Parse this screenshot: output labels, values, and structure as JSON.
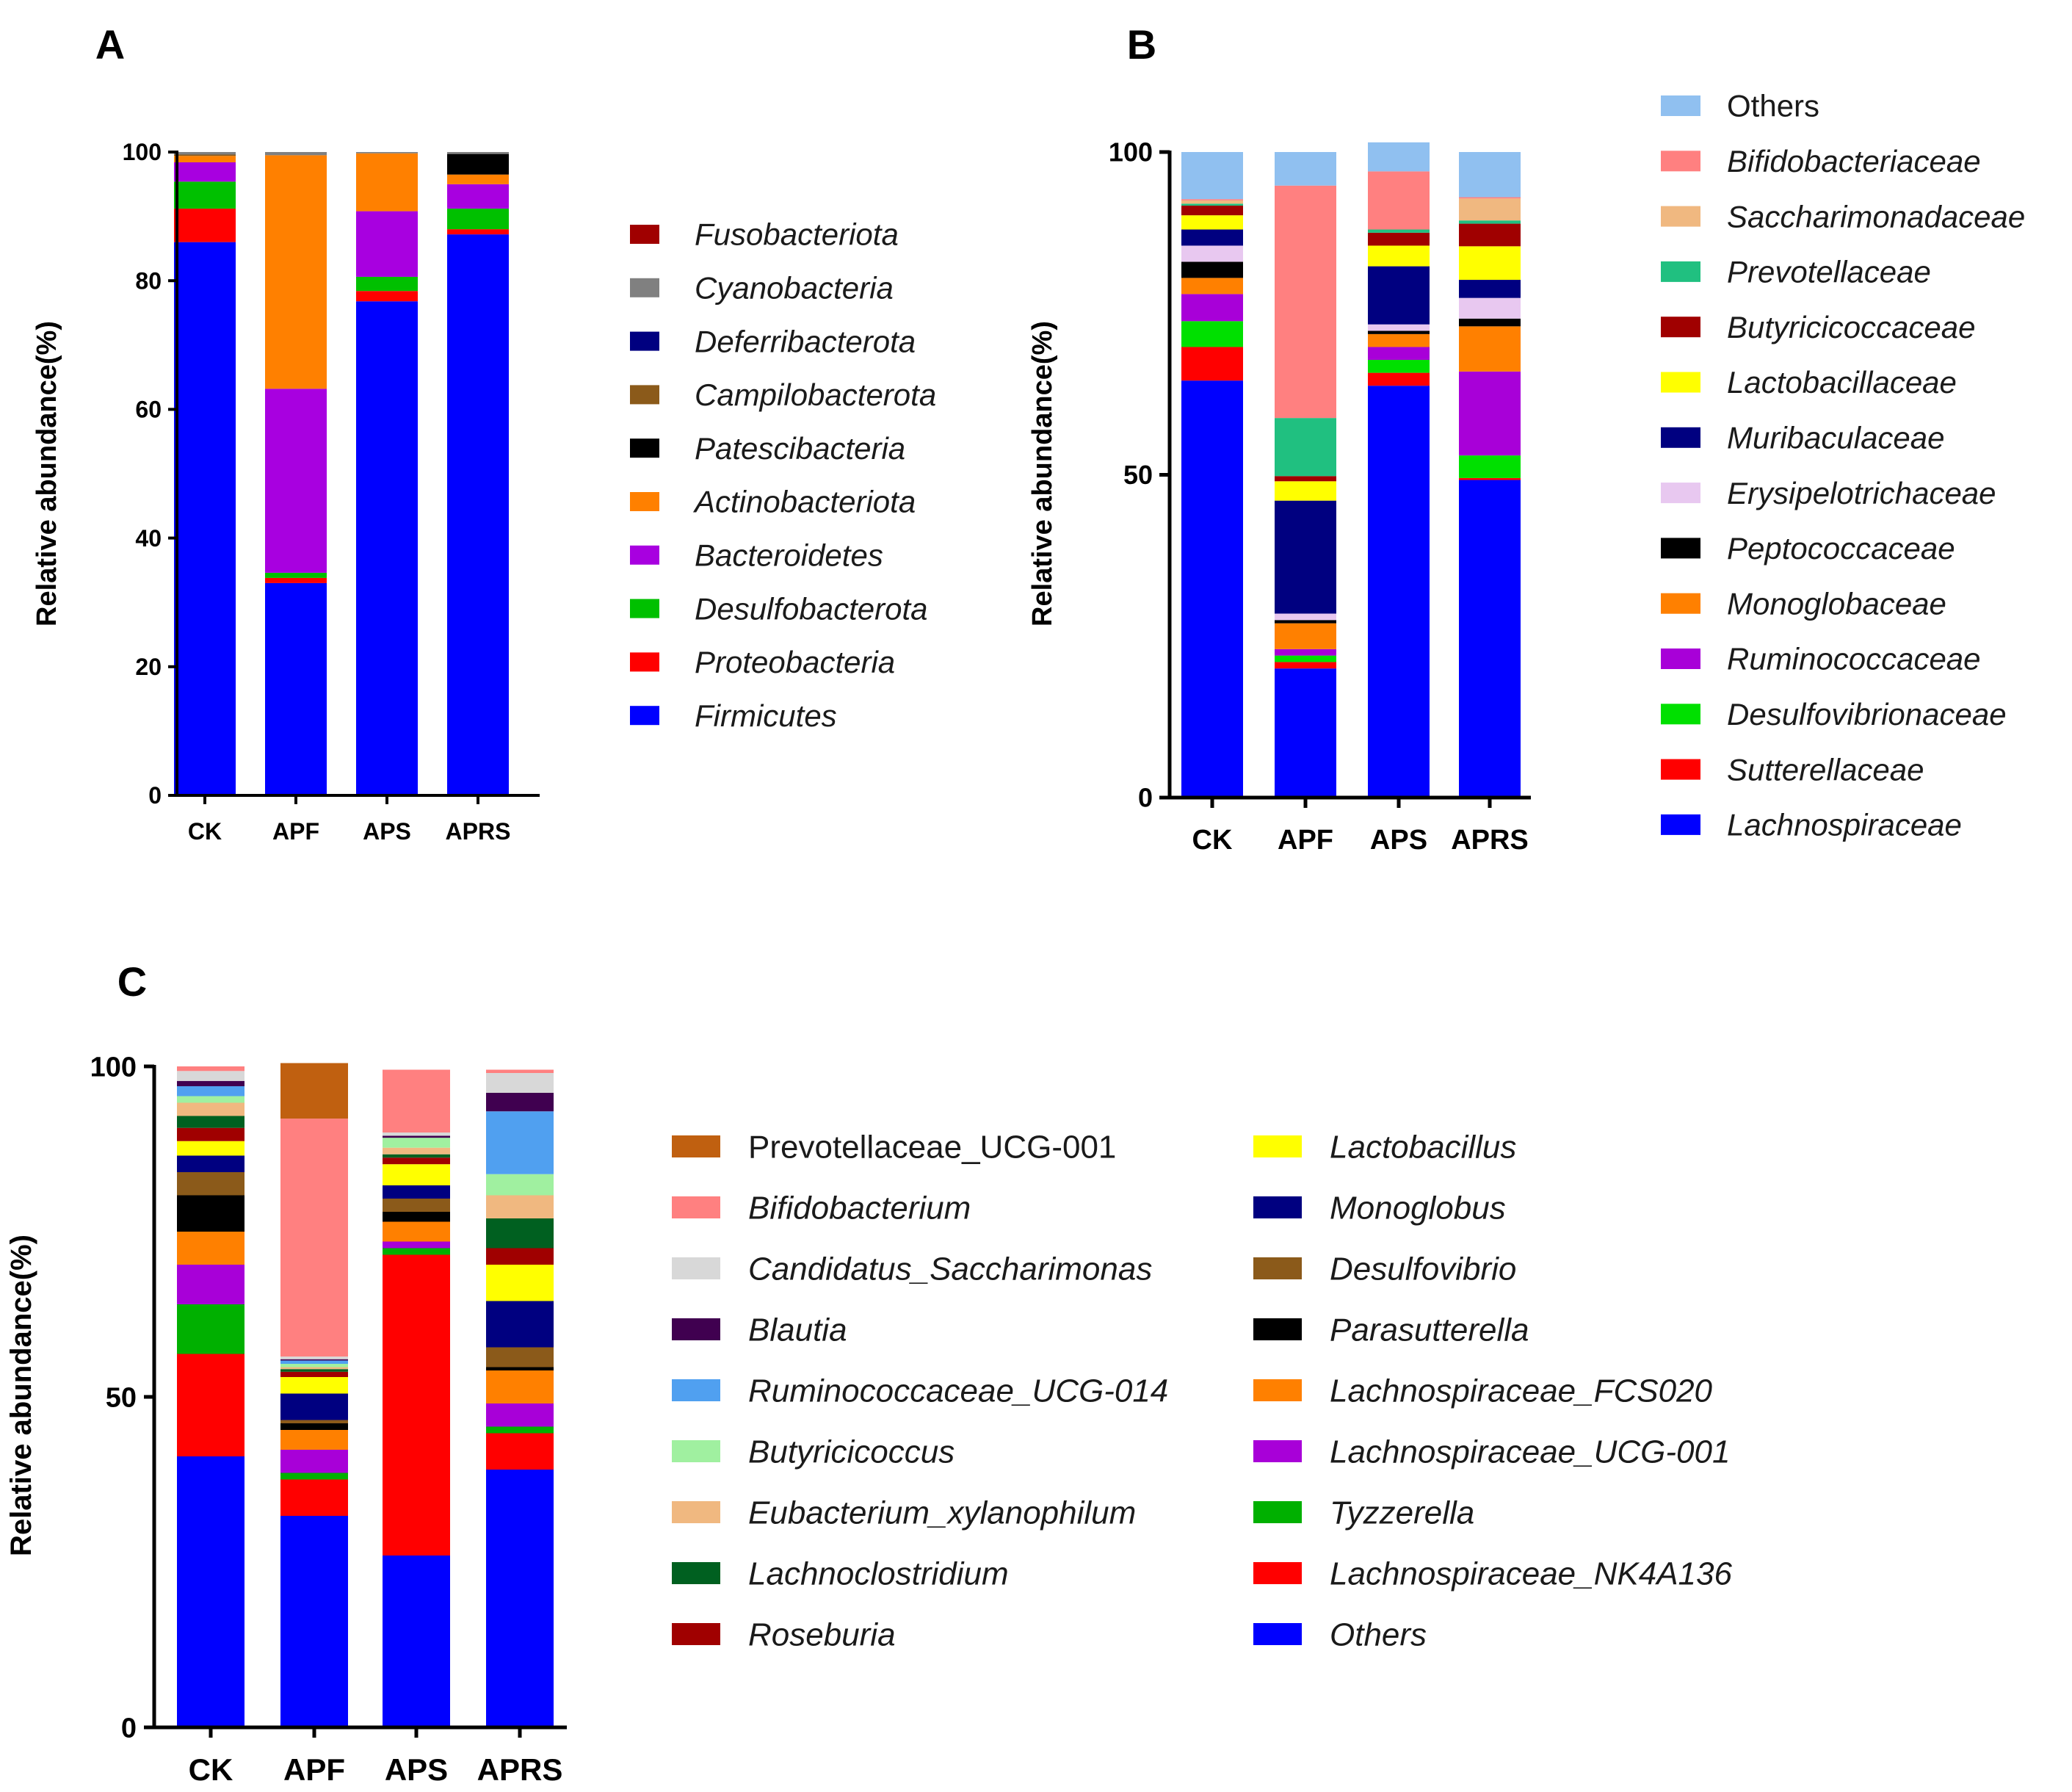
{
  "chart_data": [
    {
      "id": "A",
      "type": "bar",
      "stacked": true,
      "panel_label": "A",
      "title": "",
      "xlabel": "",
      "ylabel": "Relative abundance(%)",
      "ylim": [
        0,
        100
      ],
      "yticks": [
        0,
        20,
        40,
        60,
        80,
        100
      ],
      "categories": [
        "CK",
        "APF",
        "APS",
        "APRS"
      ],
      "legend_italic": [
        true,
        true,
        true,
        true,
        true,
        true,
        true,
        true,
        true,
        true
      ],
      "series": [
        {
          "name": "Firmicutes",
          "color": "#0000FF",
          "values": [
            86,
            33,
            76.8,
            87.2
          ]
        },
        {
          "name": "Proteobacteria",
          "color": "#FF0000",
          "values": [
            5.2,
            0.8,
            1.6,
            0.8
          ]
        },
        {
          "name": "Desulfobacterota",
          "color": "#00C000",
          "values": [
            4.2,
            0.8,
            2.2,
            3.2
          ]
        },
        {
          "name": "Bacteroidetes",
          "color": "#A800E0",
          "values": [
            3,
            28.6,
            10.2,
            3.8
          ]
        },
        {
          "name": "Actinobacteriota",
          "color": "#FF8000",
          "values": [
            1,
            36.3,
            9,
            1.5
          ]
        },
        {
          "name": "Patescibacteria",
          "color": "#000000",
          "values": [
            0,
            0,
            0,
            3.2
          ]
        },
        {
          "name": "Campilobacterota",
          "color": "#8B5A1A",
          "values": [
            0.2,
            0,
            0,
            0
          ]
        },
        {
          "name": "Deferribacterota",
          "color": "#000080",
          "values": [
            0,
            0,
            0,
            0
          ]
        },
        {
          "name": "Cyanobacteria",
          "color": "#808080",
          "values": [
            0.4,
            0.5,
            0.2,
            0.3
          ]
        },
        {
          "name": "Fusobacteriota",
          "color": "#A00000",
          "values": [
            0,
            0,
            0,
            0
          ]
        }
      ]
    },
    {
      "id": "B",
      "type": "bar",
      "stacked": true,
      "panel_label": "B",
      "title": "",
      "xlabel": "",
      "ylabel": "Relative abundance(%)",
      "ylim": [
        0,
        100
      ],
      "yticks": [
        0,
        50,
        100
      ],
      "categories": [
        "CK",
        "APF",
        "APS",
        "APRS"
      ],
      "legend_italic": [
        true,
        true,
        true,
        true,
        true,
        true,
        true,
        true,
        true,
        true,
        true,
        true,
        true,
        false
      ],
      "series": [
        {
          "name": "Lachnospiraceae",
          "color": "#0000FF",
          "values": [
            64.6,
            20,
            63.8,
            49.2
          ]
        },
        {
          "name": "Sutterellaceae",
          "color": "#FF0000",
          "values": [
            5.2,
            1,
            2,
            0.3
          ]
        },
        {
          "name": "Desulfovibrionaceae",
          "color": "#00E000",
          "values": [
            4,
            1,
            2,
            3.5
          ]
        },
        {
          "name": "Ruminococcaceae",
          "color": "#A800D8",
          "values": [
            4.2,
            1,
            2,
            13
          ]
        },
        {
          "name": "Monoglobaceae",
          "color": "#FF8000",
          "values": [
            2.5,
            4,
            2,
            7
          ]
        },
        {
          "name": "Peptococcaceae",
          "color": "#000000",
          "values": [
            2.5,
            0.5,
            0.5,
            1.2
          ]
        },
        {
          "name": "Erysipelotrichaceae",
          "color": "#E8C8F0",
          "values": [
            2.5,
            1,
            1,
            3.2
          ]
        },
        {
          "name": "Muribaculaceae",
          "color": "#000080",
          "values": [
            2.5,
            17.5,
            9,
            2.8
          ]
        },
        {
          "name": "Lactobacillaceae",
          "color": "#FFFF00",
          "values": [
            2.2,
            3,
            3.2,
            5.2
          ]
        },
        {
          "name": "Butyricicoccaceae",
          "color": "#A00000",
          "values": [
            1.5,
            0.8,
            2,
            3.5
          ]
        },
        {
          "name": "Prevotellaceae",
          "color": "#20C080",
          "values": [
            0.3,
            9,
            0.5,
            0.5
          ]
        },
        {
          "name": "Saccharimonadaceae",
          "color": "#F0B880",
          "values": [
            0.5,
            0,
            0,
            3.4
          ]
        },
        {
          "name": "Bifidobacteriaceae",
          "color": "#FF8080",
          "values": [
            0.2,
            36,
            9,
            0.2
          ]
        },
        {
          "name": "Others",
          "color": "#90C0F0",
          "values": [
            7.3,
            5.2,
            4.5,
            7
          ]
        }
      ]
    },
    {
      "id": "C",
      "type": "bar",
      "stacked": true,
      "panel_label": "C",
      "title": "",
      "xlabel": "",
      "ylabel": "Relative abundance(%)",
      "ylim": [
        0,
        100
      ],
      "yticks": [
        0,
        50,
        100
      ],
      "categories": [
        "CK",
        "APF",
        "APS",
        "APRS"
      ],
      "legend_italic": [
        true,
        true,
        true,
        true,
        true,
        true,
        true,
        true,
        true,
        true,
        true,
        true,
        true,
        true,
        true,
        true,
        true,
        false
      ],
      "series": [
        {
          "name": "Others",
          "color": "#0000FF",
          "values": [
            41,
            32,
            26,
            39
          ]
        },
        {
          "name": "Lachnospiraceae_NK4A136",
          "color": "#FF0000",
          "values": [
            15.5,
            5.5,
            45.5,
            5.5
          ]
        },
        {
          "name": "Tyzzerella",
          "color": "#00B000",
          "values": [
            7.5,
            1,
            1,
            1
          ]
        },
        {
          "name": "Lachnospiraceae_UCG-001",
          "color": "#A800D8",
          "values": [
            6,
            3.5,
            1,
            3.5
          ]
        },
        {
          "name": "Lachnospiraceae_FCS020",
          "color": "#FF8000",
          "values": [
            5,
            3,
            3,
            5
          ]
        },
        {
          "name": "Parasutterella",
          "color": "#000000",
          "values": [
            5.5,
            1,
            1.5,
            0.5
          ]
        },
        {
          "name": "Desulfovibrio",
          "color": "#8B5A1A",
          "values": [
            3.5,
            0.5,
            2,
            3
          ]
        },
        {
          "name": "Monoglobus",
          "color": "#000080",
          "values": [
            2.5,
            4,
            2,
            7
          ]
        },
        {
          "name": "Lactobacillus",
          "color": "#FFFF00",
          "values": [
            2.2,
            2.5,
            3.2,
            5.5
          ]
        },
        {
          "name": "Roseburia",
          "color": "#A00000",
          "values": [
            2,
            0.8,
            1,
            2.5
          ]
        },
        {
          "name": "Lachnoclostridium",
          "color": "#006020",
          "values": [
            1.8,
            0.4,
            0.5,
            4.5
          ]
        },
        {
          "name": "Eubacterium_xylanophilum",
          "color": "#F0B880",
          "values": [
            2,
            0.3,
            1,
            3.5
          ]
        },
        {
          "name": "Butyricicoccus",
          "color": "#A0F0A0",
          "values": [
            1,
            0.5,
            1.5,
            3.2
          ]
        },
        {
          "name": "Ruminococcaceae_UCG-014",
          "color": "#50A0F0",
          "values": [
            1.5,
            0.5,
            0,
            9.5
          ]
        },
        {
          "name": "Blautia",
          "color": "#400050",
          "values": [
            0.8,
            0.2,
            0.3,
            2.8
          ]
        },
        {
          "name": "Candidatus_Saccharimonas",
          "color": "#D8D8D8",
          "values": [
            1.5,
            0.4,
            0.5,
            3
          ]
        },
        {
          "name": "Bifidobacterium",
          "color": "#FF8080",
          "values": [
            0.7,
            36,
            9.5,
            0.5
          ]
        },
        {
          "name": "Prevotellaceae_UCG-001",
          "color": "#C06010",
          "values": [
            0,
            8.4,
            0,
            0
          ]
        }
      ]
    }
  ]
}
